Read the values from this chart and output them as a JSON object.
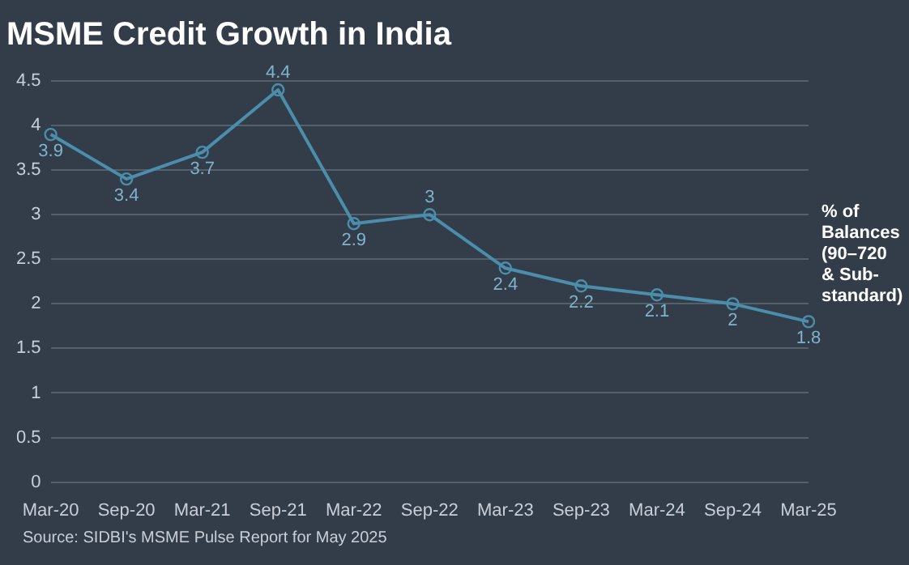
{
  "chart_data": {
    "type": "line",
    "title": "MSME Credit Growth in India",
    "categories": [
      "Mar-20",
      "Sep-20",
      "Mar-21",
      "Sep-21",
      "Mar-22",
      "Sep-22",
      "Mar-23",
      "Sep-23",
      "Mar-24",
      "Sep-24",
      "Mar-25"
    ],
    "series": [
      {
        "name": "% of Balances (90–720 & Sub-standard)",
        "color": "#4b8eab",
        "values": [
          3.9,
          3.4,
          3.7,
          4.4,
          2.9,
          3,
          2.4,
          2.2,
          2.1,
          2,
          1.8
        ]
      }
    ],
    "ylim": [
      0,
      4.5
    ],
    "yticks": [
      0,
      0.5,
      1,
      1.5,
      2,
      2.5,
      3,
      3.5,
      4,
      4.5
    ],
    "grid": "y",
    "legend": false,
    "marker": "circle",
    "line_style": "solid",
    "data_labels": true,
    "annotations": [
      "Source: SIDBI's MSME Pulse Report for May 2025"
    ]
  }
}
